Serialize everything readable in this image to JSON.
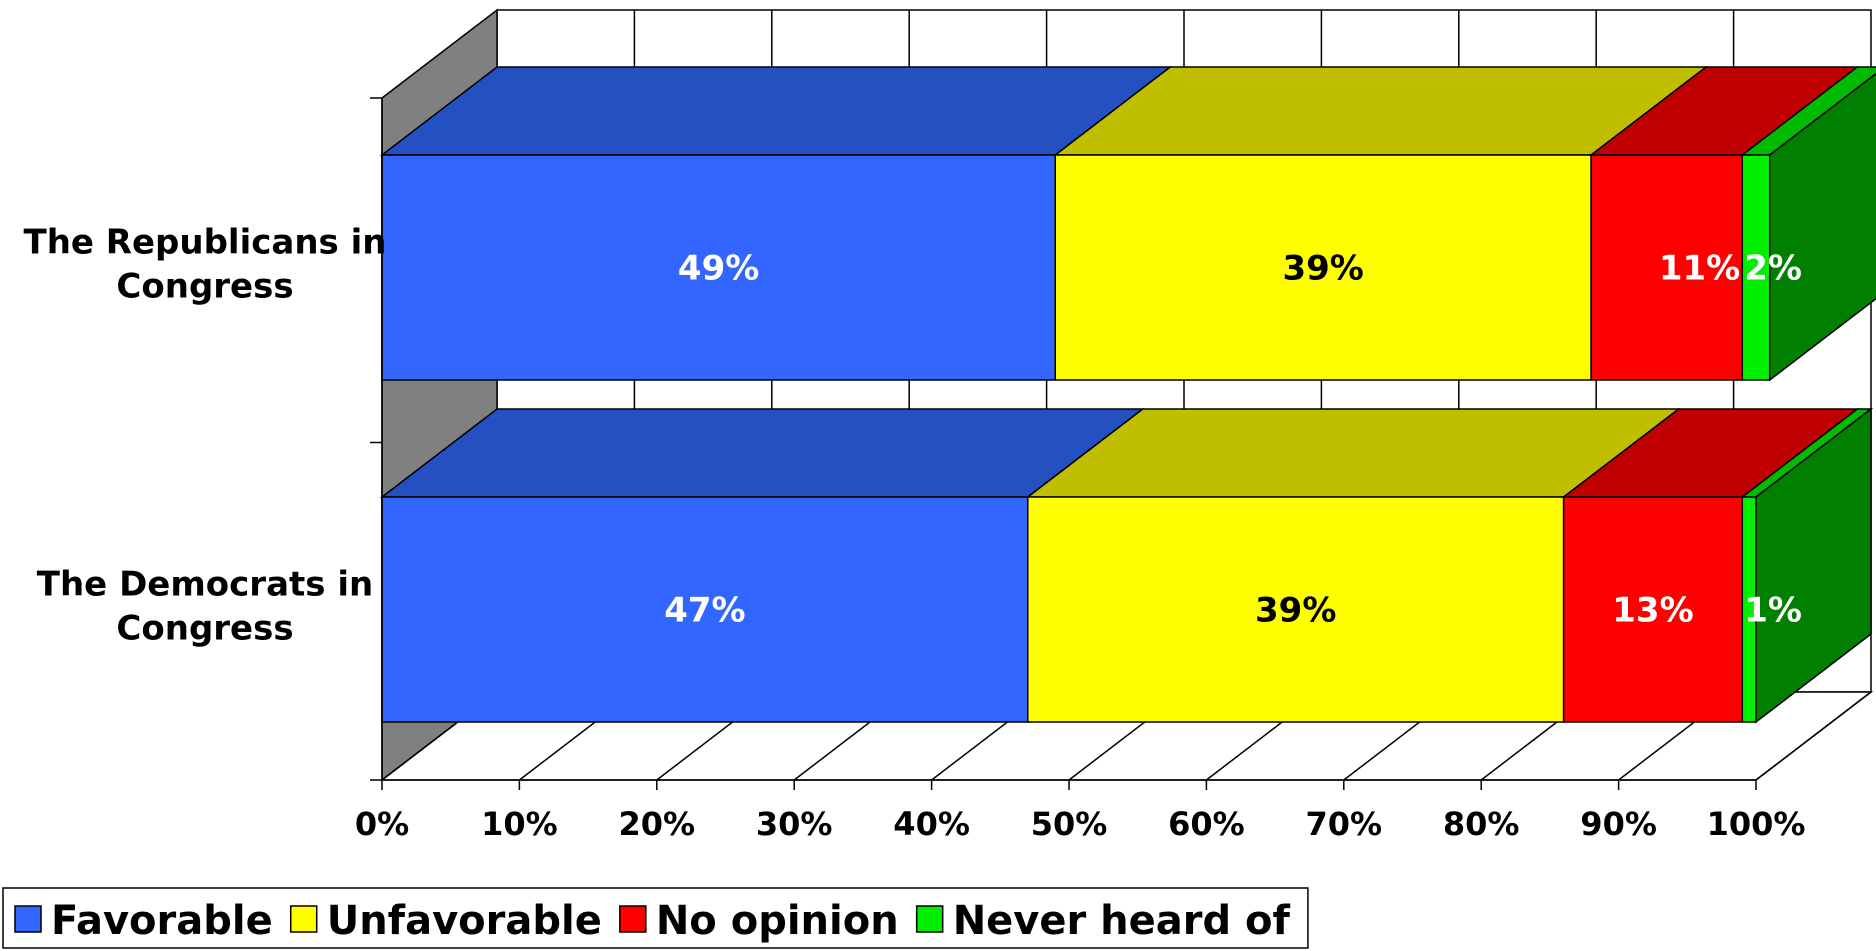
{
  "chart_data": {
    "type": "bar",
    "orientation": "horizontal",
    "stacked": "percent",
    "three_d": true,
    "categories": [
      "The Republicans in Congress",
      "The Democrats in Congress"
    ],
    "category_label_lines": [
      [
        "The Republicans in",
        "Congress"
      ],
      [
        "The Democrats in",
        "Congress"
      ]
    ],
    "series": [
      {
        "name": "Favorable",
        "values": [
          49,
          47
        ],
        "labels": [
          "49%",
          "47%"
        ],
        "front_color": "#3366FF",
        "top_color": "#2550C2",
        "side_color": "#1A3D9E",
        "label_color": "#FFFFFF"
      },
      {
        "name": "Unfavorable",
        "values": [
          39,
          39
        ],
        "labels": [
          "39%",
          "39%"
        ],
        "front_color": "#FFFF00",
        "top_color": "#BFBF00",
        "side_color": "#999900",
        "label_color": "#000000"
      },
      {
        "name": "No opinion",
        "values": [
          11,
          13
        ],
        "labels": [
          "11%",
          "13%"
        ],
        "front_color": "#FF0000",
        "top_color": "#C00000",
        "side_color": "#990000",
        "label_color": "#FFFFFF"
      },
      {
        "name": "Never heard of",
        "values": [
          2,
          1
        ],
        "labels": [
          "2%",
          "1%"
        ],
        "front_color": "#00EE00",
        "top_color": "#00BB00",
        "side_color": "#007F00",
        "label_color": "#FFFFFF"
      }
    ],
    "xlim": [
      0,
      100
    ],
    "xticks": [
      "0%",
      "10%",
      "20%",
      "30%",
      "40%",
      "50%",
      "60%",
      "70%",
      "80%",
      "90%",
      "100%"
    ],
    "grid": true,
    "legend": "bottom-left",
    "wall_color": "#808080"
  }
}
